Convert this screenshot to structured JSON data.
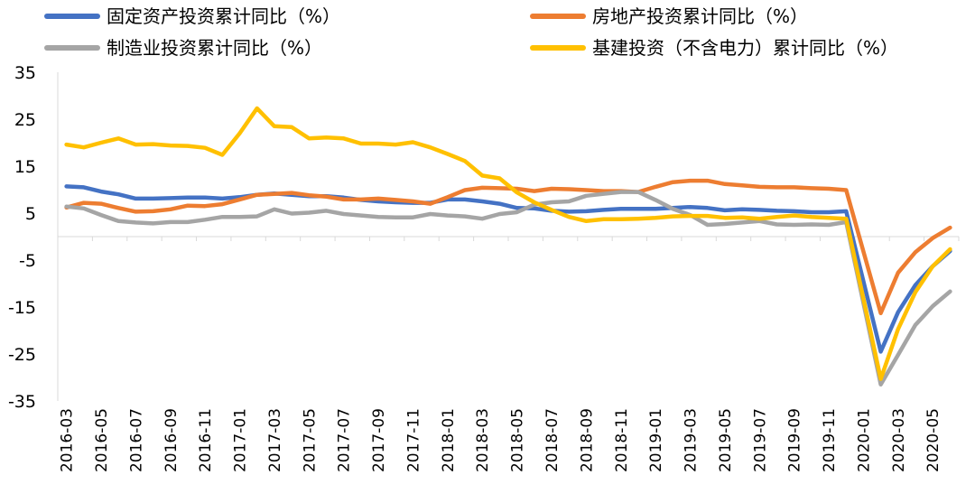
{
  "chart_data": {
    "type": "line",
    "title": "",
    "xlabel": "",
    "ylabel": "",
    "ylim": [
      -35,
      35
    ],
    "yticks": [
      35,
      25,
      15,
      5,
      -5,
      -15,
      -25,
      -35
    ],
    "grid": false,
    "legend_position": "top",
    "x_tick_labels": [
      "2016-03",
      "2016-05",
      "2016-07",
      "2016-09",
      "2016-11",
      "2017-01",
      "2017-03",
      "2017-05",
      "2017-07",
      "2017-09",
      "2017-11",
      "2018-01",
      "2018-03",
      "2018-05",
      "2018-07",
      "2018-09",
      "2018-11",
      "2019-01",
      "2019-03",
      "2019-05",
      "2019-07",
      "2019-09",
      "2019-11",
      "2020-01",
      "2020-03",
      "2020-05"
    ],
    "x": [
      "2016-03",
      "2016-04",
      "2016-05",
      "2016-06",
      "2016-07",
      "2016-08",
      "2016-09",
      "2016-10",
      "2016-11",
      "2016-12",
      "2017-01",
      "2017-02",
      "2017-03",
      "2017-04",
      "2017-05",
      "2017-06",
      "2017-07",
      "2017-08",
      "2017-09",
      "2017-10",
      "2017-11",
      "2017-12",
      "2018-01",
      "2018-02",
      "2018-03",
      "2018-04",
      "2018-05",
      "2018-06",
      "2018-07",
      "2018-08",
      "2018-09",
      "2018-10",
      "2018-11",
      "2018-12",
      "2019-01",
      "2019-02",
      "2019-03",
      "2019-04",
      "2019-05",
      "2019-06",
      "2019-07",
      "2019-08",
      "2019-09",
      "2019-10",
      "2019-11",
      "2019-12",
      "2020-01",
      "2020-02",
      "2020-03",
      "2020-04",
      "2020-05",
      "2020-06"
    ],
    "series": [
      {
        "name": "固定资产投资累计同比（%）",
        "color": "#4472C4",
        "values": [
          10.7,
          10.5,
          9.6,
          9.0,
          8.1,
          8.1,
          8.2,
          8.3,
          8.3,
          8.1,
          8.4,
          8.9,
          9.2,
          8.9,
          8.6,
          8.6,
          8.3,
          7.8,
          7.5,
          7.3,
          7.2,
          7.2,
          7.9,
          7.9,
          7.5,
          7.0,
          6.1,
          6.0,
          5.5,
          5.3,
          5.4,
          5.7,
          5.9,
          5.9,
          5.9,
          6.1,
          6.3,
          6.1,
          5.6,
          5.8,
          5.7,
          5.5,
          5.4,
          5.2,
          5.2,
          5.4,
          null,
          -24.5,
          -16.1,
          -10.3,
          -6.3,
          -3.1
        ]
      },
      {
        "name": "房地产投资累计同比（%）",
        "color": "#ED7D31",
        "values": [
          6.2,
          7.2,
          7.0,
          6.1,
          5.3,
          5.4,
          5.8,
          6.6,
          6.5,
          6.9,
          7.9,
          8.9,
          9.1,
          9.3,
          8.8,
          8.5,
          7.9,
          7.9,
          8.1,
          7.8,
          7.5,
          7.0,
          8.4,
          9.9,
          10.4,
          10.3,
          10.2,
          9.7,
          10.2,
          10.1,
          9.9,
          9.7,
          9.7,
          9.5,
          10.6,
          11.6,
          11.9,
          11.9,
          11.2,
          10.9,
          10.6,
          10.5,
          10.5,
          10.3,
          10.2,
          9.9,
          null,
          -16.3,
          -7.7,
          -3.3,
          -0.3,
          1.9
        ]
      },
      {
        "name": "制造业投资累计同比（%）",
        "color": "#A5A5A5",
        "values": [
          6.4,
          6.0,
          4.6,
          3.3,
          3.0,
          2.8,
          3.1,
          3.1,
          3.6,
          4.2,
          4.2,
          4.3,
          5.8,
          4.9,
          5.1,
          5.5,
          4.8,
          4.5,
          4.2,
          4.1,
          4.1,
          4.8,
          4.5,
          4.3,
          3.8,
          4.8,
          5.2,
          6.8,
          7.3,
          7.5,
          8.7,
          9.1,
          9.5,
          9.5,
          7.8,
          5.9,
          4.6,
          2.5,
          2.7,
          3.0,
          3.3,
          2.6,
          2.5,
          2.6,
          2.5,
          3.1,
          null,
          -31.5,
          -25.2,
          -18.8,
          -14.8,
          -11.7
        ]
      },
      {
        "name": "基建投资（不含电力）累计同比（%）",
        "color": "#FFC000",
        "values": [
          19.6,
          19.0,
          20.0,
          20.9,
          19.6,
          19.7,
          19.4,
          19.3,
          18.9,
          17.4,
          22.0,
          27.3,
          23.5,
          23.3,
          20.9,
          21.1,
          20.9,
          19.8,
          19.8,
          19.6,
          20.1,
          19.0,
          17.6,
          16.1,
          13.0,
          12.4,
          9.4,
          7.3,
          5.7,
          4.2,
          3.3,
          3.7,
          3.7,
          3.8,
          4.0,
          4.3,
          4.4,
          4.4,
          4.0,
          4.1,
          3.8,
          4.2,
          4.5,
          4.2,
          4.0,
          3.8,
          null,
          -30.3,
          -19.7,
          -11.8,
          -6.3,
          -2.7
        ]
      }
    ]
  }
}
